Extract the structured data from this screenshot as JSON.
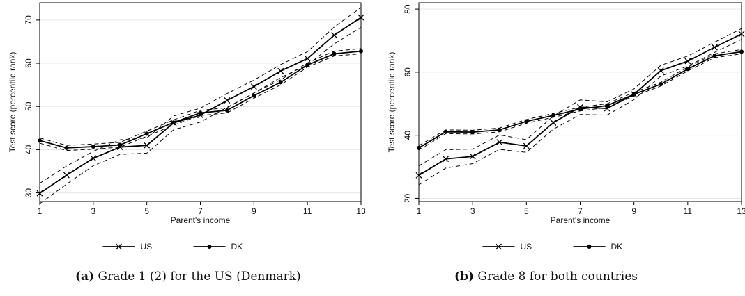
{
  "chart_data": [
    {
      "type": "line",
      "caption_tag": "(a)",
      "caption_text": "Grade 1 (2) for the US (Denmark)",
      "xlabel": "Parent's income",
      "ylabel": "Test score (percentile rank)",
      "xlim": [
        1,
        13
      ],
      "ylim": [
        28,
        74
      ],
      "xticks": [
        1,
        3,
        5,
        7,
        9,
        11,
        13
      ],
      "yticks": [
        30,
        40,
        50,
        60,
        70
      ],
      "grid": "horizontal",
      "legend_position": "bottom",
      "x": [
        1,
        2,
        3,
        4,
        5,
        6,
        7,
        8,
        9,
        10,
        11,
        12,
        13
      ],
      "series": [
        {
          "name": "US",
          "marker": "x",
          "values": [
            29.9,
            34.1,
            38.0,
            40.6,
            41.0,
            46.2,
            48.0,
            51.4,
            54.6,
            58.2,
            61.1,
            66.5,
            70.6
          ],
          "ci_lower": [
            27.5,
            32.0,
            36.3,
            38.9,
            39.2,
            44.6,
            46.4,
            49.8,
            53.1,
            56.7,
            59.6,
            64.5,
            68.3
          ],
          "ci_upper": [
            32.2,
            36.2,
            39.6,
            42.3,
            42.7,
            47.8,
            49.6,
            53.0,
            56.1,
            59.7,
            62.7,
            68.4,
            72.9
          ]
        },
        {
          "name": "DK",
          "marker": "dot",
          "values": [
            42.1,
            40.4,
            40.7,
            41.1,
            43.7,
            46.3,
            48.5,
            49.1,
            52.5,
            55.6,
            59.6,
            62.2,
            62.8
          ],
          "ci_lower": [
            41.5,
            39.8,
            40.1,
            40.6,
            43.1,
            45.7,
            47.9,
            48.5,
            51.9,
            55.0,
            59.1,
            61.7,
            62.2
          ],
          "ci_upper": [
            42.7,
            41.0,
            41.3,
            41.7,
            44.3,
            46.9,
            49.1,
            49.7,
            53.1,
            56.2,
            60.1,
            62.8,
            63.4
          ]
        }
      ]
    },
    {
      "type": "line",
      "caption_tag": "(b)",
      "caption_text": "Grade 8 for both countries",
      "xlabel": "Parent's income",
      "ylabel": "Test score (percentile rank)",
      "xlim": [
        1,
        13
      ],
      "ylim": [
        19,
        82
      ],
      "xticks": [
        1,
        3,
        5,
        7,
        9,
        11,
        13
      ],
      "yticks": [
        20,
        40,
        60,
        80
      ],
      "grid": "horizontal",
      "legend_position": "bottom",
      "x": [
        1,
        2,
        3,
        4,
        5,
        6,
        7,
        8,
        9,
        10,
        11,
        12,
        13
      ],
      "series": [
        {
          "name": "US",
          "marker": "x",
          "values": [
            27.3,
            32.5,
            33.3,
            37.8,
            36.6,
            44.0,
            48.9,
            48.5,
            53.0,
            60.5,
            63.5,
            67.9,
            72.1
          ],
          "ci_lower": [
            24.3,
            29.6,
            31.0,
            35.5,
            34.6,
            41.9,
            46.6,
            46.4,
            51.3,
            58.8,
            61.9,
            66.3,
            70.4
          ],
          "ci_upper": [
            30.3,
            35.4,
            35.6,
            40.1,
            38.6,
            46.1,
            51.2,
            50.6,
            54.7,
            62.2,
            65.1,
            69.5,
            73.8
          ]
        },
        {
          "name": "DK",
          "marker": "dot",
          "values": [
            36.0,
            41.1,
            41.0,
            41.7,
            44.4,
            46.3,
            48.3,
            49.4,
            53.0,
            56.2,
            61.0,
            65.2,
            66.5
          ],
          "ci_lower": [
            35.3,
            40.5,
            40.4,
            41.1,
            43.8,
            45.7,
            47.7,
            48.8,
            52.4,
            55.6,
            60.4,
            64.6,
            65.8
          ],
          "ci_upper": [
            36.7,
            41.7,
            41.6,
            42.3,
            45.0,
            46.9,
            48.9,
            50.0,
            53.6,
            56.8,
            61.6,
            65.8,
            67.2
          ]
        }
      ]
    }
  ]
}
